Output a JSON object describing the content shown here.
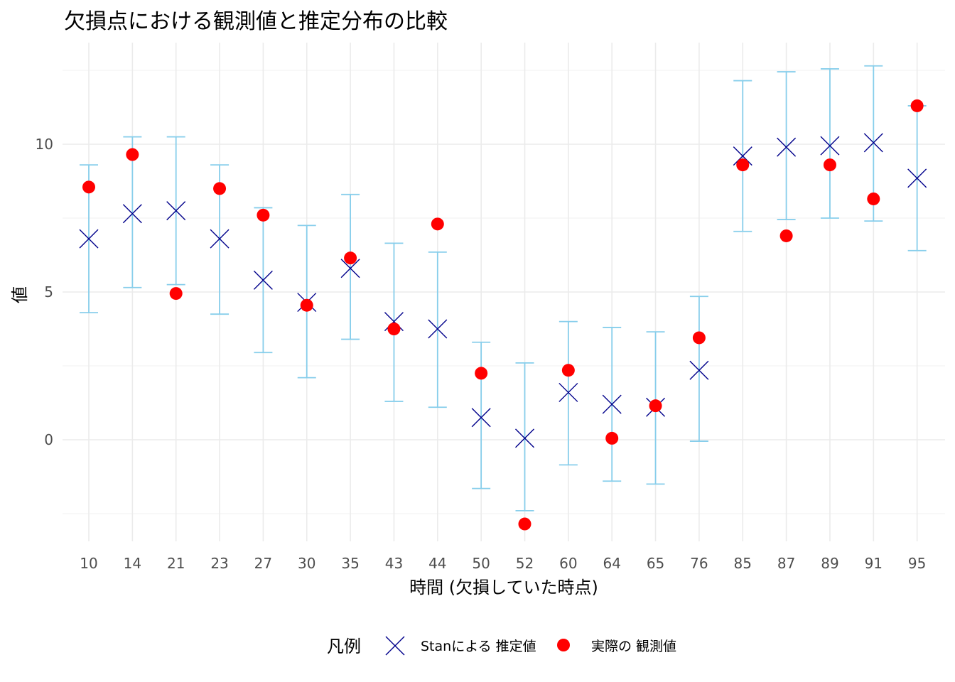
{
  "chart_data": {
    "type": "scatter",
    "title": "欠損点における観測値と推定分布の比較",
    "xlabel": "時間 (欠損していた時点)",
    "ylabel": "値",
    "categories": [
      "10",
      "14",
      "21",
      "23",
      "27",
      "30",
      "35",
      "43",
      "44",
      "50",
      "52",
      "60",
      "64",
      "65",
      "76",
      "85",
      "87",
      "89",
      "91",
      "95"
    ],
    "ylim": [
      -3.5,
      13.4
    ],
    "yticks": [
      0,
      5,
      10
    ],
    "grid": true,
    "legend": {
      "position": "bottom",
      "title": "凡例",
      "entries": [
        {
          "label": "Stanによる 推定値",
          "marker": "x",
          "color": "#00008b"
        },
        {
          "label": "実際の 観測値",
          "marker": "circle",
          "color": "#ff0000"
        }
      ]
    },
    "errorbar_color": "#87ceeb",
    "series": [
      {
        "name": "Stanによる 推定値",
        "marker": "x",
        "values": [
          6.8,
          7.65,
          7.75,
          6.8,
          5.4,
          4.65,
          5.8,
          4.0,
          3.75,
          0.75,
          0.05,
          1.6,
          1.2,
          1.1,
          2.35,
          9.6,
          9.9,
          9.95,
          10.05,
          8.85
        ]
      },
      {
        "name": "実際の 観測値",
        "marker": "circle",
        "values": [
          8.55,
          9.65,
          4.95,
          8.5,
          7.6,
          4.55,
          6.15,
          3.75,
          7.3,
          2.25,
          -2.85,
          2.35,
          0.05,
          1.15,
          3.45,
          9.3,
          6.9,
          9.3,
          8.15,
          11.3
        ]
      }
    ],
    "intervals": {
      "lower": [
        4.3,
        5.15,
        5.25,
        4.25,
        2.95,
        2.1,
        3.4,
        1.3,
        1.1,
        -1.65,
        -2.4,
        -0.85,
        -1.4,
        -1.5,
        -0.05,
        7.05,
        7.45,
        7.5,
        7.4,
        6.4
      ],
      "upper": [
        9.3,
        10.25,
        10.25,
        9.3,
        7.85,
        7.25,
        8.3,
        6.65,
        6.35,
        3.3,
        2.6,
        4.0,
        3.8,
        3.65,
        4.85,
        12.15,
        12.45,
        12.55,
        12.65,
        11.3
      ]
    }
  }
}
